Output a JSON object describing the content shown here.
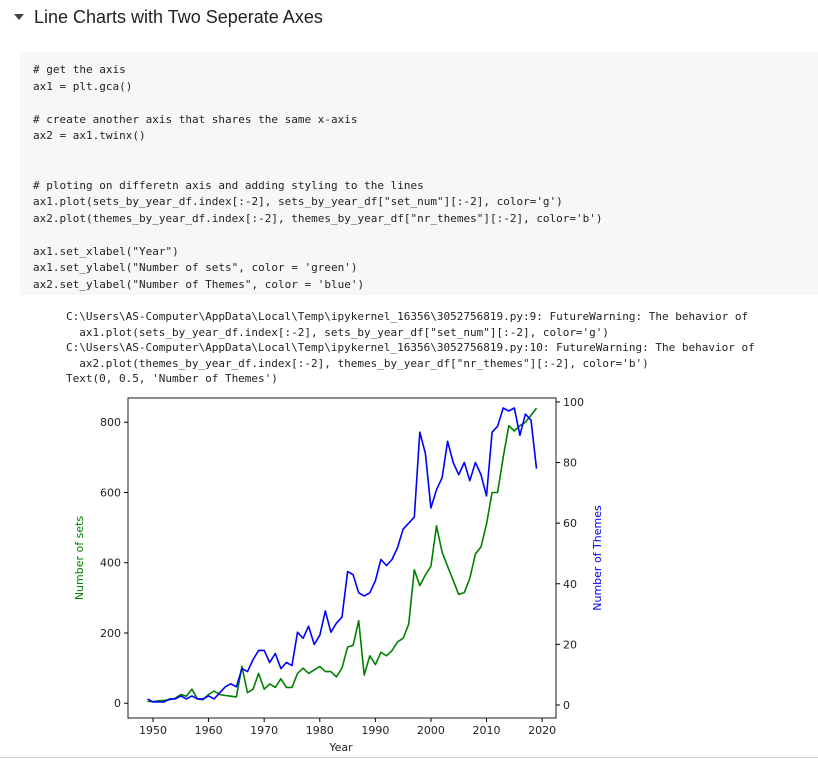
{
  "header": {
    "title": "Line Charts with Two Seperate Axes"
  },
  "code": {
    "blocks": [
      [
        "# get the axis",
        "ax1 = plt.gca()"
      ],
      [
        "# create another axis that shares the same x-axis",
        "ax2 = ax1.twinx()"
      ],
      [
        "# ploting on differetn axis and adding styling to the lines",
        "ax1.plot(sets_by_year_df.index[:-2], sets_by_year_df[\"set_num\"][:-2], color='g')",
        "ax2.plot(themes_by_year_df.index[:-2], themes_by_year_df[\"nr_themes\"][:-2], color='b')"
      ],
      [
        "ax1.set_xlabel(\"Year\")",
        "ax1.set_ylabel(\"Number of sets\", color = 'green')",
        "ax2.set_ylabel(\"Number of Themes\", color = 'blue')"
      ]
    ]
  },
  "output": {
    "lines": [
      "C:\\Users\\AS-Computer\\AppData\\Local\\Temp\\ipykernel_16356\\3052756819.py:9: FutureWarning: The behavior of",
      "  ax1.plot(sets_by_year_df.index[:-2], sets_by_year_df[\"set_num\"][:-2], color='g')",
      "C:\\Users\\AS-Computer\\AppData\\Local\\Temp\\ipykernel_16356\\3052756819.py:10: FutureWarning: The behavior of",
      "  ax2.plot(themes_by_year_df.index[:-2], themes_by_year_df[\"nr_themes\"][:-2], color='b')",
      "Text(0, 0.5, 'Number of Themes')"
    ]
  },
  "chart_data": {
    "type": "line",
    "xlabel": "Year",
    "ylabel": "Number of sets",
    "ylabel_color": "green",
    "y2label": "Number of Themes",
    "y2label_color": "blue",
    "x": [
      1949,
      1950,
      1951,
      1952,
      1953,
      1954,
      1955,
      1956,
      1957,
      1958,
      1959,
      1960,
      1961,
      1962,
      1963,
      1964,
      1965,
      1966,
      1967,
      1968,
      1969,
      1970,
      1971,
      1972,
      1973,
      1974,
      1975,
      1976,
      1977,
      1978,
      1979,
      1980,
      1981,
      1982,
      1983,
      1984,
      1985,
      1986,
      1987,
      1988,
      1989,
      1990,
      1991,
      1992,
      1993,
      1994,
      1995,
      1996,
      1997,
      1998,
      1999,
      2000,
      2001,
      2002,
      2003,
      2004,
      2005,
      2006,
      2007,
      2008,
      2009,
      2010,
      2011,
      2012,
      2013,
      2014,
      2015,
      2016,
      2017,
      2018,
      2019
    ],
    "series": [
      {
        "name": "Number of sets",
        "color": "#008000",
        "axis": "y",
        "values": [
          5,
          5,
          7,
          8,
          10,
          14,
          25,
          20,
          40,
          12,
          10,
          25,
          35,
          25,
          22,
          20,
          18,
          105,
          30,
          40,
          85,
          40,
          55,
          45,
          70,
          45,
          45,
          85,
          100,
          85,
          95,
          105,
          90,
          90,
          75,
          100,
          160,
          165,
          235,
          80,
          135,
          110,
          145,
          135,
          150,
          175,
          185,
          225,
          380,
          335,
          365,
          390,
          505,
          430,
          390,
          350,
          310,
          315,
          355,
          425,
          445,
          510,
          600,
          600,
          700,
          790,
          775,
          790,
          800,
          820,
          840
        ]
      },
      {
        "name": "Number of Themes",
        "color": "#0000ff",
        "axis": "y2",
        "values": [
          2,
          1,
          1,
          1,
          2,
          2,
          3,
          2,
          3,
          2,
          2,
          3,
          2,
          4,
          6,
          7,
          6,
          12,
          11,
          15,
          18,
          18,
          14,
          17,
          12,
          14,
          13,
          24,
          22,
          26,
          20,
          23,
          31,
          24,
          27,
          29,
          44,
          43,
          37,
          36,
          37,
          41,
          48,
          46,
          48,
          52,
          58,
          60,
          62,
          90,
          83,
          65,
          71,
          75,
          87,
          80,
          76,
          80,
          74,
          80,
          76,
          69,
          90,
          92,
          98,
          97,
          98,
          89,
          96,
          94,
          78
        ]
      }
    ],
    "xlim": [
      1945.5,
      2022.5
    ],
    "xticks": [
      1950,
      1960,
      1970,
      1980,
      1990,
      2000,
      2010,
      2020
    ],
    "ylim": [
      -42,
      869
    ],
    "yticks": [
      0,
      200,
      400,
      600,
      800
    ],
    "y2lim": [
      -4.3,
      101.3
    ],
    "y2ticks": [
      0,
      20,
      40,
      60,
      80,
      100
    ],
    "grid": false
  }
}
